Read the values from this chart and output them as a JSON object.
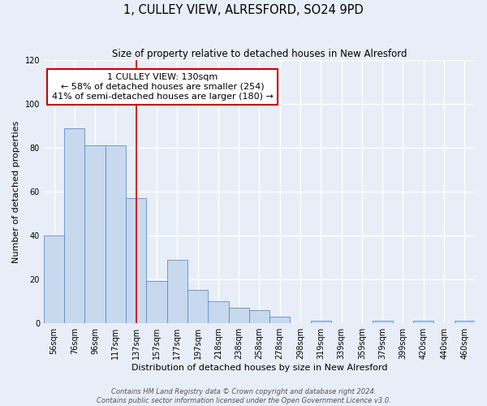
{
  "title": "1, CULLEY VIEW, ALRESFORD, SO24 9PD",
  "subtitle": "Size of property relative to detached houses in New Alresford",
  "xlabel": "Distribution of detached houses by size in New Alresford",
  "ylabel": "Number of detached properties",
  "bar_labels": [
    "56sqm",
    "76sqm",
    "96sqm",
    "117sqm",
    "137sqm",
    "157sqm",
    "177sqm",
    "197sqm",
    "218sqm",
    "238sqm",
    "258sqm",
    "278sqm",
    "298sqm",
    "319sqm",
    "339sqm",
    "359sqm",
    "379sqm",
    "399sqm",
    "420sqm",
    "440sqm",
    "460sqm"
  ],
  "bar_values": [
    40,
    89,
    81,
    81,
    57,
    19,
    29,
    15,
    10,
    7,
    6,
    3,
    0,
    1,
    0,
    0,
    1,
    0,
    1,
    0,
    1
  ],
  "bar_color": "#c8d9ee",
  "bar_edge_color": "#5b8ec4",
  "background_color": "#e8eef7",
  "grid_color": "#ffffff",
  "ylim": [
    0,
    120
  ],
  "yticks": [
    0,
    20,
    40,
    60,
    80,
    100,
    120
  ],
  "vline_x_index": 4,
  "vline_color": "#cc0000",
  "annotation_title": "1 CULLEY VIEW: 130sqm",
  "annotation_line1": "← 58% of detached houses are smaller (254)",
  "annotation_line2": "41% of semi-detached houses are larger (180) →",
  "annotation_box_edgecolor": "#cc0000",
  "footer_line1": "Contains HM Land Registry data © Crown copyright and database right 2024.",
  "footer_line2": "Contains public sector information licensed under the Open Government Licence v3.0.",
  "title_fontsize": 10.5,
  "subtitle_fontsize": 8.5,
  "xlabel_fontsize": 8,
  "ylabel_fontsize": 8,
  "tick_fontsize": 7,
  "annotation_fontsize": 8,
  "footer_fontsize": 6
}
